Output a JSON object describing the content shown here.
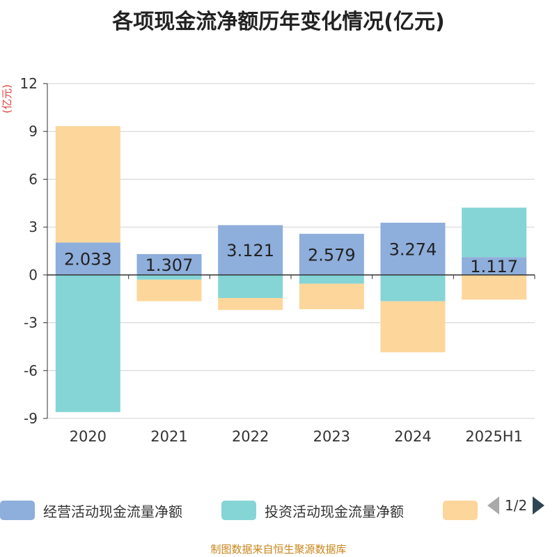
{
  "colors": {
    "operating": "#8eaedb",
    "investing": "#85d5d6",
    "financing": "#fdd69b",
    "source_text": "#c8861a",
    "unit_text": "#e0403a"
  },
  "legend": {
    "items": [
      {
        "label": "经营活动现金流量净额"
      },
      {
        "label": "投资活动现金流量净额"
      },
      {
        "label": ""
      }
    ],
    "page_text": "1/2"
  },
  "source": "制图数据来自恒生聚源数据库",
  "chart_data": {
    "type": "bar",
    "stacked": true,
    "title": "各项现金流净额历年变化情况(亿元)",
    "ylabel": "(亿元)",
    "categories": [
      "2020",
      "2021",
      "2022",
      "2023",
      "2024",
      "2025H1"
    ],
    "ylim": [
      -9,
      12
    ],
    "yticks": [
      12,
      9,
      6,
      3,
      0,
      -3,
      -6,
      -9
    ],
    "grid": true,
    "legend_position": "bottom",
    "series": [
      {
        "name": "经营活动现金流量净额",
        "values": [
          2.033,
          1.307,
          3.121,
          2.579,
          3.274,
          1.117
        ],
        "data_labels": [
          "2.033",
          "1.307",
          "3.121",
          "2.579",
          "3.274",
          "1.117"
        ]
      },
      {
        "name": "投资活动现金流量净额",
        "values": [
          -8.6,
          -0.3,
          -1.45,
          -0.55,
          -1.65,
          3.1
        ]
      },
      {
        "values": [
          7.3,
          -1.35,
          -0.75,
          -1.6,
          -3.2,
          -1.55
        ]
      }
    ]
  }
}
